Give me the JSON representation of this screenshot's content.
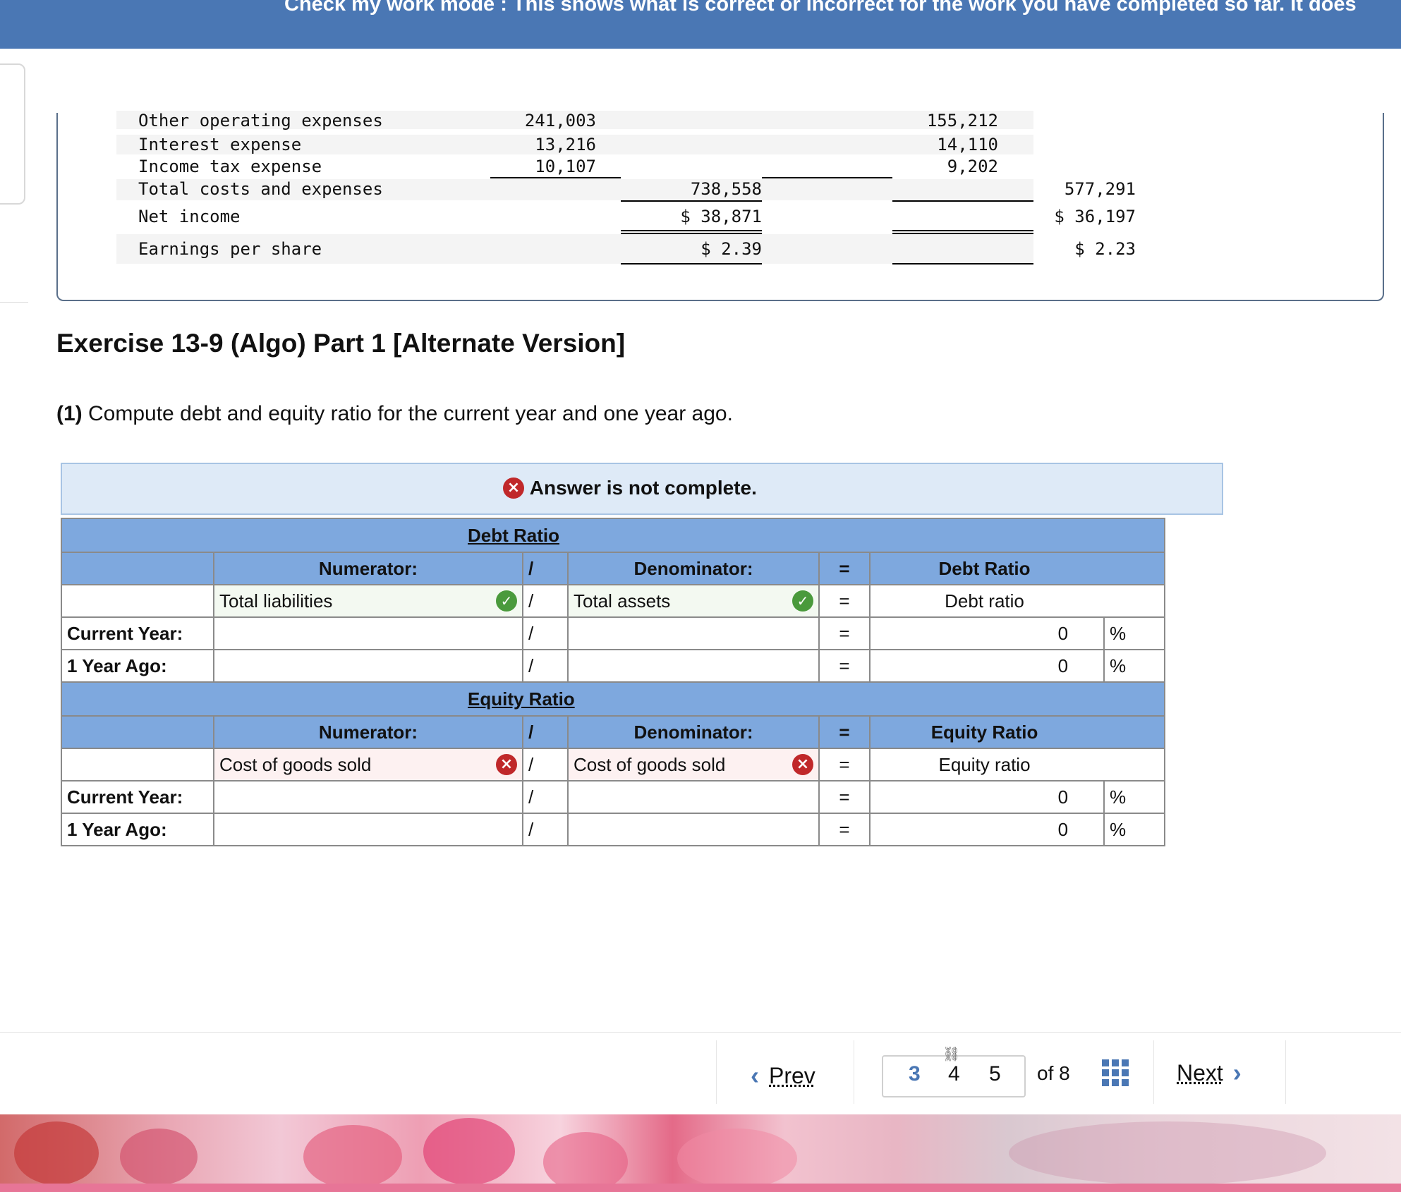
{
  "banner": {
    "text": "Check my work mode : This shows what is correct or incorrect for the work you have completed so far. It does"
  },
  "statement": {
    "rows": [
      {
        "label": "Other operating expenses",
        "c1": "241,003",
        "c2": "",
        "c3": "155,212",
        "c4": ""
      },
      {
        "label": "Interest expense",
        "c1": "13,216",
        "c2": "",
        "c3": "14,110",
        "c4": ""
      },
      {
        "label": "Income tax expense",
        "c1": "10,107",
        "c2": "",
        "c3": "9,202",
        "c4": ""
      },
      {
        "label": "Total costs and expenses",
        "c1": "",
        "c2": "738,558",
        "c3": "",
        "c4": "577,291"
      },
      {
        "label": "Net income",
        "c1": "",
        "c2": "$ 38,871",
        "c3": "",
        "c4": "$ 36,197"
      },
      {
        "label": "Earnings per share",
        "c1": "",
        "c2": "$ 2.39",
        "c3": "",
        "c4": "$ 2.23"
      }
    ]
  },
  "exercise": {
    "title": "Exercise 13-9 (Algo) Part 1 [Alternate Version]",
    "part_label": "(1)",
    "instruction": "Compute debt and equity ratio for the current year and one year ago."
  },
  "alert": {
    "message": "Answer is not complete."
  },
  "debt": {
    "section_title": "Debt Ratio",
    "numerator_header": "Numerator:",
    "slash": "/",
    "denominator_header": "Denominator:",
    "equals": "=",
    "result_header": "Debt Ratio",
    "numerator_value": "Total liabilities",
    "denominator_value": "Total assets",
    "result_label": "Debt ratio",
    "rows": [
      {
        "label": "Current Year:",
        "value": "0",
        "unit": "%"
      },
      {
        "label": "1 Year Ago:",
        "value": "0",
        "unit": "%"
      }
    ]
  },
  "equity": {
    "section_title": "Equity Ratio",
    "numerator_header": "Numerator:",
    "slash": "/",
    "denominator_header": "Denominator:",
    "equals": "=",
    "result_header": "Equity Ratio",
    "numerator_value": "Cost of goods sold",
    "denominator_value": "Cost of goods sold",
    "result_label": "Equity ratio",
    "rows": [
      {
        "label": "Current Year:",
        "value": "0",
        "unit": "%"
      },
      {
        "label": "1 Year Ago:",
        "value": "0",
        "unit": "%"
      }
    ]
  },
  "icons": {
    "correct": "check-circle-icon",
    "incorrect": "x-circle-icon"
  },
  "nav": {
    "prev_label": "Prev",
    "pages": [
      "3",
      "4",
      "5"
    ],
    "current_page": "3",
    "of_label": "of 8",
    "next_label": "Next"
  },
  "colors": {
    "banner": "#4a77b4",
    "header": "#7ea8de",
    "alert_bg": "#deeaf7",
    "correct": "#4a9a3c",
    "incorrect": "#c0282a"
  }
}
